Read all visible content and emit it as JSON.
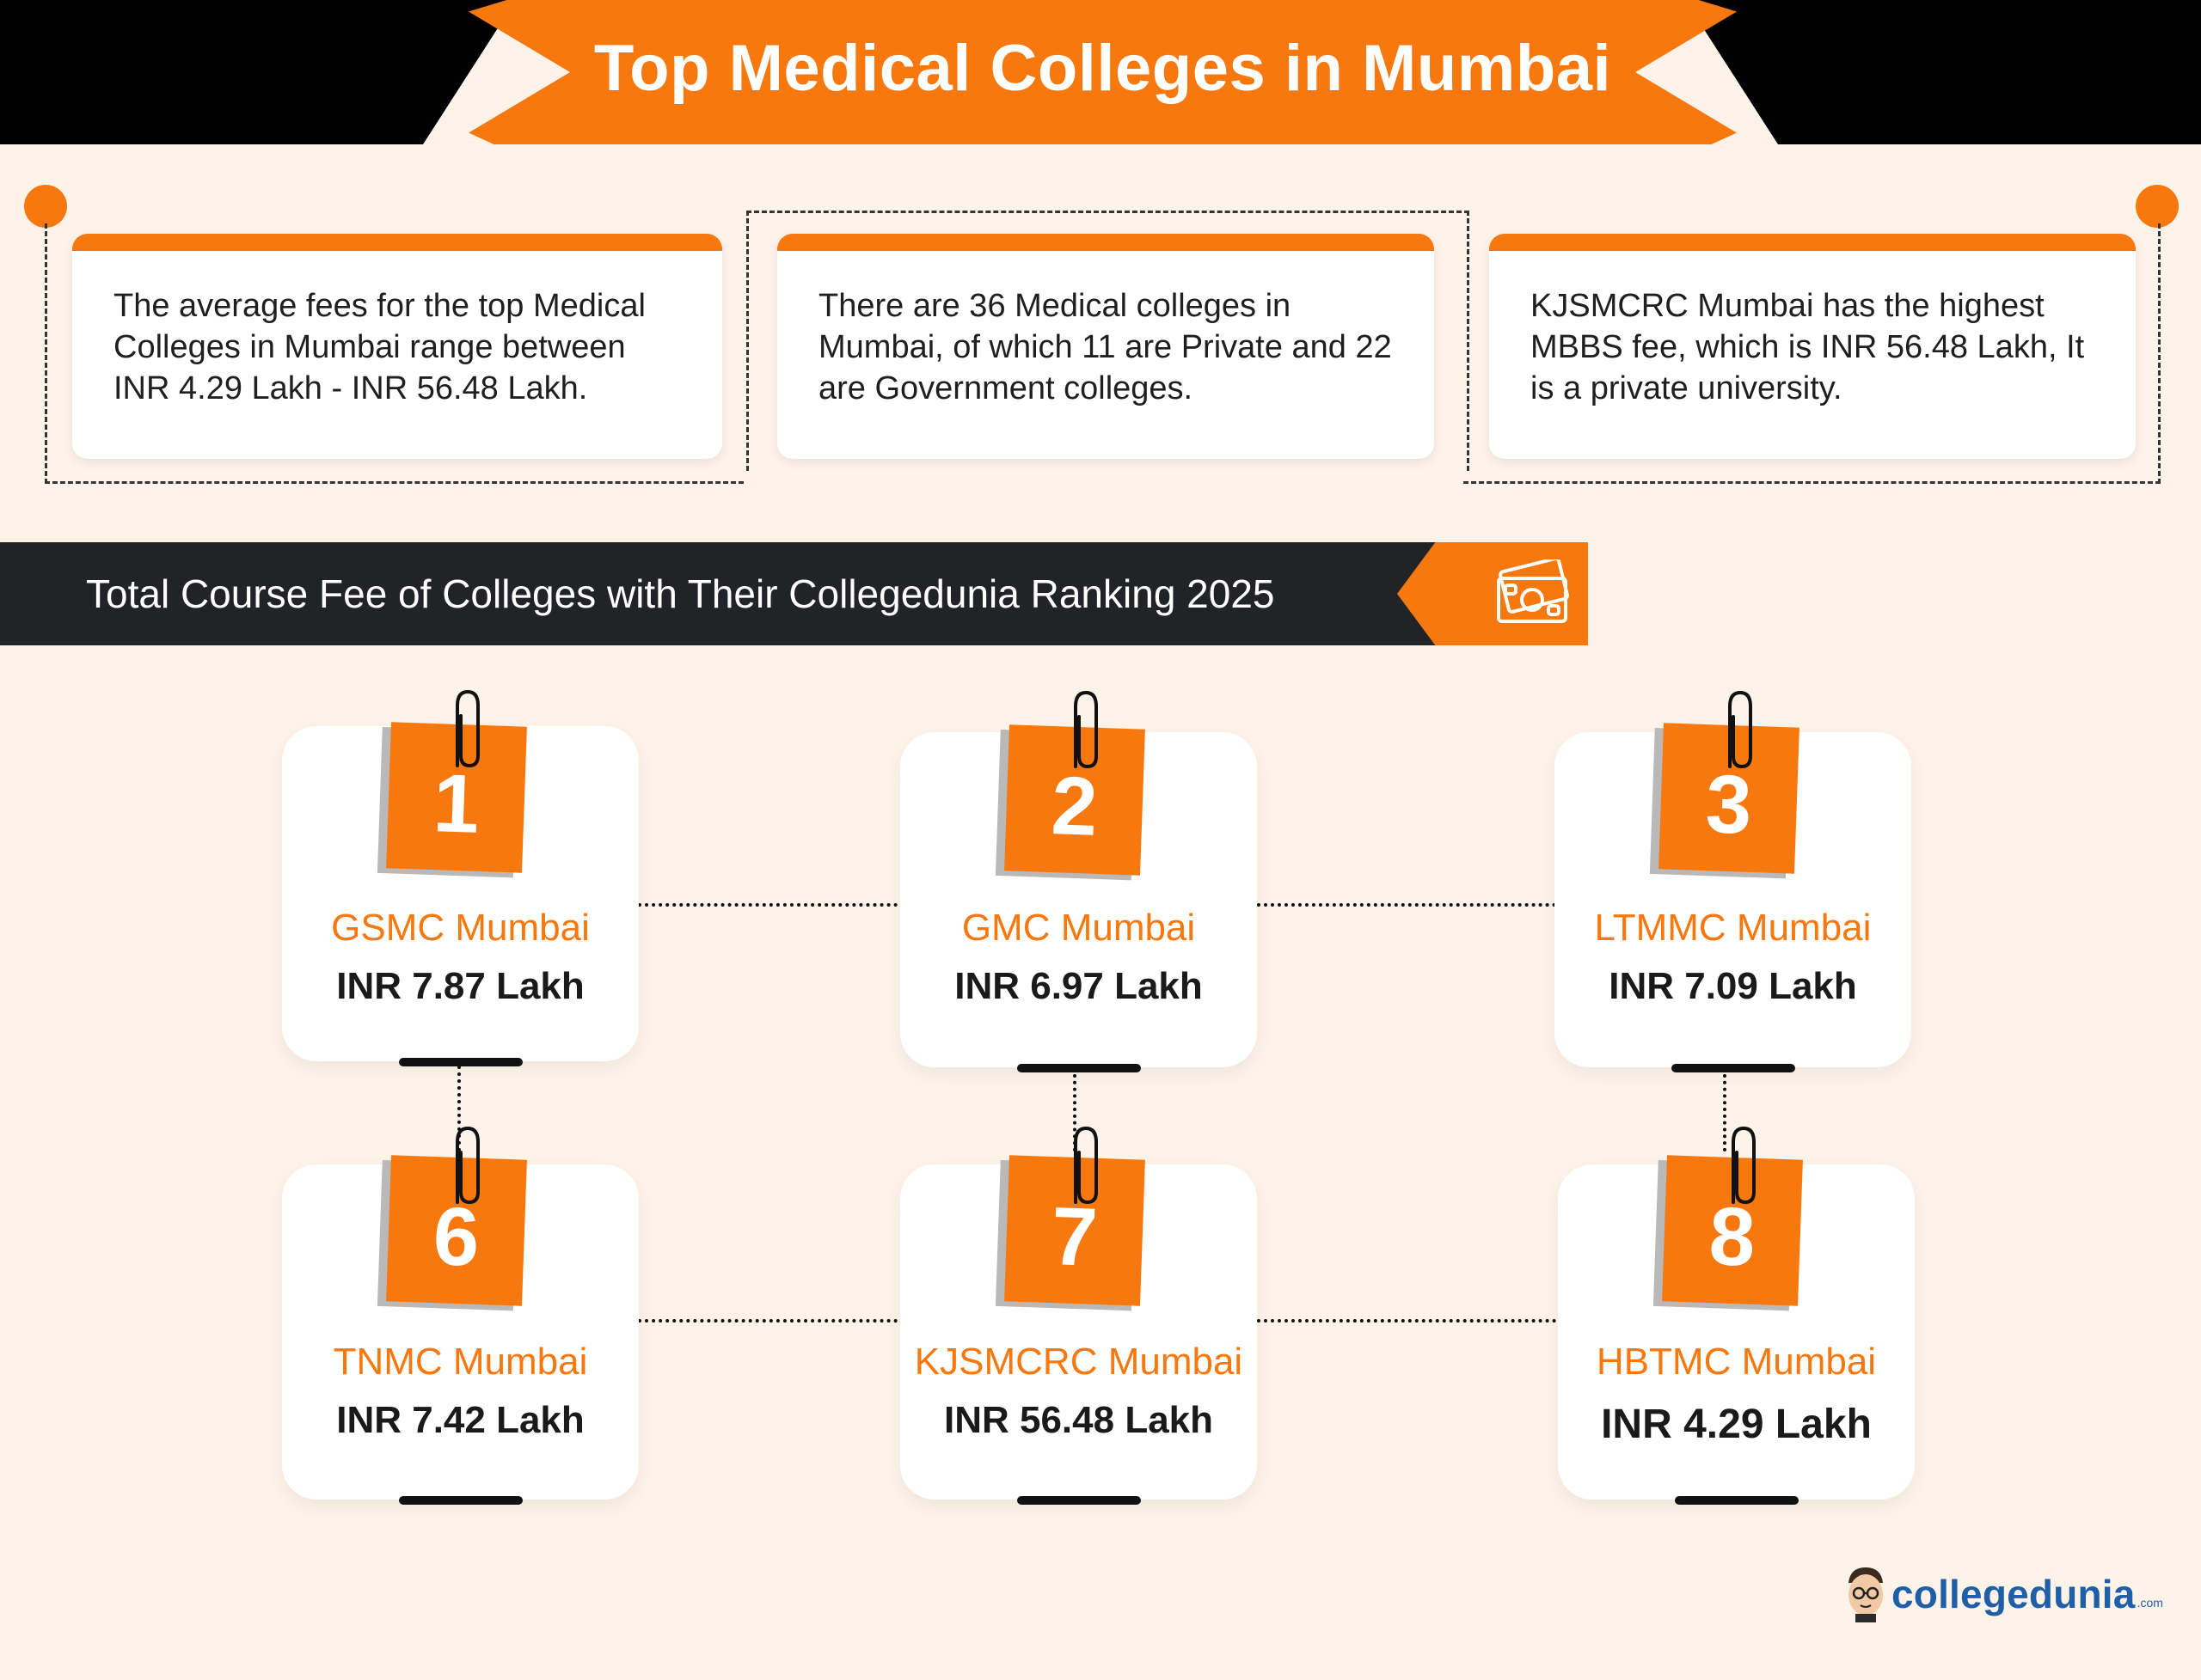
{
  "title": "Top Medical Colleges in Mumbai",
  "info_cards": [
    {
      "text": "The average fees for the top Medical Colleges in Mumbai range between INR 4.29 Lakh - INR 56.48 Lakh."
    },
    {
      "text": "There are 36 Medical colleges in Mumbai, of which 11 are Private and 22 are Government colleges."
    },
    {
      "text": "KJSMCRC Mumbai has the highest MBBS fee, which is INR 56.48 Lakh, It is a private university."
    }
  ],
  "section": {
    "title": "Total Course Fee of Colleges with Their Collegedunia Ranking 2025",
    "icon": "money-icon"
  },
  "colleges": [
    {
      "rank": "1",
      "name": "GSMC Mumbai",
      "fee": "INR 7.87 Lakh"
    },
    {
      "rank": "2",
      "name": "GMC Mumbai",
      "fee": "INR 6.97 Lakh"
    },
    {
      "rank": "3",
      "name": "LTMMC Mumbai",
      "fee": "INR 7.09 Lakh"
    },
    {
      "rank": "6",
      "name": "TNMC Mumbai",
      "fee": "INR 7.42 Lakh"
    },
    {
      "rank": "7",
      "name": "KJSMCRC Mumbai",
      "fee": "INR 56.48 Lakh"
    },
    {
      "rank": "8",
      "name": "HBTMC Mumbai",
      "fee": "INR 4.29 Lakh"
    }
  ],
  "logo": {
    "name": "collegedunia",
    "suffix": ".com"
  },
  "colors": {
    "accent": "#f7780f",
    "dark": "#222326",
    "background": "#fdf3e8"
  }
}
